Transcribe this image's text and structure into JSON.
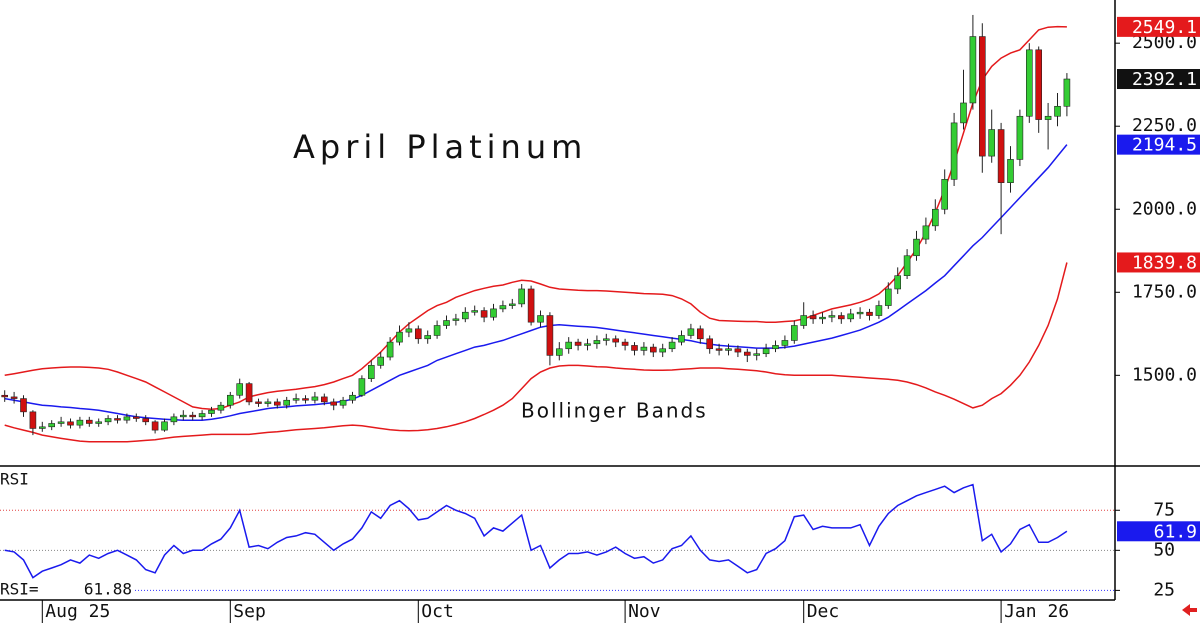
{
  "chart_data": [
    {
      "type": "candlestick",
      "title": "April Platinum",
      "annotation": "Bollinger Bands",
      "categories": [
        null,
        null,
        null,
        null,
        "Aug 25",
        null,
        null,
        null,
        null,
        null,
        null,
        null,
        null,
        null,
        null,
        null,
        null,
        null,
        null,
        null,
        null,
        null,
        null,
        null,
        "Sep",
        null,
        null,
        null,
        null,
        null,
        null,
        null,
        null,
        null,
        null,
        null,
        null,
        null,
        null,
        null,
        null,
        null,
        null,
        null,
        "Oct",
        null,
        null,
        null,
        null,
        null,
        null,
        null,
        null,
        null,
        null,
        null,
        null,
        null,
        null,
        null,
        null,
        null,
        null,
        null,
        null,
        null,
        "Nov",
        null,
        null,
        null,
        null,
        null,
        null,
        null,
        null,
        null,
        null,
        null,
        null,
        null,
        null,
        null,
        null,
        null,
        null,
        "Dec",
        null,
        null,
        null,
        null,
        null,
        null,
        null,
        null,
        null,
        null,
        null,
        null,
        null,
        null,
        null,
        null,
        null,
        null,
        null,
        null,
        "Jan 26",
        null,
        null,
        null,
        null,
        null,
        null,
        null
      ],
      "open": [
        1440,
        1435,
        1430,
        1390,
        1340,
        1345,
        1355,
        1360,
        1350,
        1365,
        1355,
        1360,
        1370,
        1365,
        1375,
        1370,
        1360,
        1335,
        1360,
        1375,
        1380,
        1375,
        1385,
        1395,
        1410,
        1440,
        1475,
        1420,
        1415,
        1420,
        1410,
        1425,
        1430,
        1425,
        1435,
        1420,
        1410,
        1425,
        1440,
        1490,
        1530,
        1555,
        1600,
        1630,
        1640,
        1610,
        1620,
        1650,
        1665,
        1670,
        1690,
        1695,
        1675,
        1700,
        1710,
        1715,
        1760,
        1660,
        1680,
        1560,
        1580,
        1600,
        1590,
        1595,
        1605,
        1610,
        1600,
        1590,
        1575,
        1585,
        1570,
        1580,
        1600,
        1620,
        1640,
        1610,
        1580,
        1575,
        1580,
        1570,
        1560,
        1565,
        1580,
        1590,
        1605,
        1650,
        1680,
        1670,
        1675,
        1680,
        1670,
        1685,
        1690,
        1680,
        1710,
        1760,
        1800,
        1860,
        1910,
        1950,
        2000,
        2090,
        2260,
        2320,
        2520,
        2160,
        2240,
        2080,
        2150,
        2280,
        2480,
        2270,
        2280,
        2310
      ],
      "high": [
        1455,
        1450,
        1440,
        1395,
        1360,
        1365,
        1375,
        1370,
        1375,
        1375,
        1370,
        1380,
        1380,
        1385,
        1385,
        1380,
        1365,
        1370,
        1385,
        1395,
        1390,
        1395,
        1405,
        1420,
        1450,
        1490,
        1480,
        1430,
        1430,
        1430,
        1435,
        1445,
        1440,
        1450,
        1445,
        1430,
        1435,
        1450,
        1500,
        1545,
        1570,
        1615,
        1650,
        1660,
        1650,
        1635,
        1665,
        1680,
        1685,
        1705,
        1710,
        1705,
        1715,
        1725,
        1730,
        1775,
        1770,
        1695,
        1690,
        1600,
        1615,
        1610,
        1610,
        1620,
        1625,
        1620,
        1610,
        1600,
        1600,
        1595,
        1595,
        1615,
        1635,
        1655,
        1650,
        1620,
        1595,
        1595,
        1590,
        1580,
        1580,
        1595,
        1605,
        1620,
        1665,
        1720,
        1695,
        1690,
        1695,
        1690,
        1700,
        1705,
        1700,
        1725,
        1780,
        1825,
        1880,
        1935,
        1975,
        2030,
        2120,
        2290,
        2420,
        2585,
        2560,
        2300,
        2260,
        2190,
        2300,
        2500,
        2490,
        2320,
        2350,
        2410
      ],
      "low": [
        1420,
        1415,
        1375,
        1320,
        1330,
        1335,
        1345,
        1340,
        1340,
        1345,
        1345,
        1350,
        1355,
        1355,
        1360,
        1350,
        1325,
        1330,
        1350,
        1365,
        1365,
        1365,
        1375,
        1385,
        1400,
        1430,
        1410,
        1405,
        1405,
        1400,
        1400,
        1415,
        1415,
        1415,
        1410,
        1395,
        1400,
        1415,
        1435,
        1480,
        1520,
        1545,
        1590,
        1615,
        1595,
        1595,
        1610,
        1640,
        1650,
        1660,
        1680,
        1660,
        1665,
        1690,
        1700,
        1705,
        1650,
        1645,
        1530,
        1545,
        1565,
        1575,
        1575,
        1580,
        1590,
        1585,
        1575,
        1560,
        1560,
        1555,
        1555,
        1570,
        1590,
        1610,
        1595,
        1565,
        1560,
        1560,
        1555,
        1540,
        1545,
        1555,
        1570,
        1580,
        1595,
        1640,
        1655,
        1655,
        1660,
        1655,
        1660,
        1670,
        1665,
        1670,
        1700,
        1745,
        1790,
        1845,
        1895,
        1935,
        1985,
        2070,
        2240,
        2300,
        2110,
        2140,
        1925,
        2050,
        2130,
        2260,
        2230,
        2180,
        2250,
        2280
      ],
      "close": [
        1435,
        1430,
        1390,
        1340,
        1345,
        1355,
        1360,
        1350,
        1365,
        1355,
        1360,
        1370,
        1365,
        1375,
        1370,
        1360,
        1335,
        1360,
        1375,
        1380,
        1375,
        1385,
        1395,
        1410,
        1440,
        1475,
        1420,
        1415,
        1420,
        1410,
        1425,
        1430,
        1425,
        1435,
        1420,
        1410,
        1425,
        1440,
        1490,
        1530,
        1555,
        1600,
        1630,
        1640,
        1610,
        1620,
        1650,
        1665,
        1670,
        1690,
        1695,
        1675,
        1700,
        1710,
        1715,
        1760,
        1660,
        1680,
        1560,
        1580,
        1600,
        1590,
        1595,
        1605,
        1610,
        1600,
        1590,
        1575,
        1585,
        1570,
        1580,
        1600,
        1620,
        1640,
        1610,
        1580,
        1575,
        1580,
        1570,
        1560,
        1565,
        1580,
        1590,
        1605,
        1650,
        1680,
        1670,
        1675,
        1680,
        1670,
        1685,
        1690,
        1680,
        1710,
        1760,
        1800,
        1860,
        1910,
        1950,
        2000,
        2090,
        2260,
        2320,
        2520,
        2160,
        2240,
        2080,
        2150,
        2280,
        2480,
        2270,
        2280,
        2310,
        2392.1
      ],
      "up_color": "#33cc33",
      "down_color": "#d01010",
      "close_label_color": "#111111",
      "series": [
        {
          "color": "#e41a1c",
          "values": [
            1500,
            1505,
            1510,
            1515,
            1520,
            1522,
            1524,
            1525,
            1525,
            1524,
            1522,
            1518,
            1510,
            1500,
            1490,
            1480,
            1465,
            1450,
            1435,
            1420,
            1405,
            1400,
            1398,
            1400,
            1410,
            1420,
            1435,
            1442,
            1448,
            1452,
            1455,
            1458,
            1462,
            1466,
            1472,
            1480,
            1490,
            1500,
            1520,
            1545,
            1570,
            1600,
            1630,
            1655,
            1675,
            1695,
            1710,
            1720,
            1735,
            1745,
            1755,
            1762,
            1768,
            1772,
            1780,
            1786,
            1784,
            1775,
            1765,
            1760,
            1758,
            1756,
            1755,
            1755,
            1754,
            1752,
            1750,
            1748,
            1746,
            1745,
            1744,
            1740,
            1730,
            1715,
            1690,
            1672,
            1665,
            1664,
            1663,
            1662,
            1662,
            1660,
            1660,
            1662,
            1664,
            1670,
            1680,
            1690,
            1700,
            1706,
            1712,
            1720,
            1730,
            1745,
            1770,
            1800,
            1840,
            1880,
            1930,
            1990,
            2060,
            2140,
            2230,
            2320,
            2390,
            2430,
            2455,
            2470,
            2480,
            2510,
            2540,
            2548,
            2550,
            2549.1
          ]
        },
        {
          "color": "#1a1aee",
          "values": [
            1430,
            1425,
            1420,
            1415,
            1410,
            1408,
            1405,
            1403,
            1400,
            1398,
            1395,
            1390,
            1385,
            1380,
            1375,
            1372,
            1370,
            1368,
            1366,
            1365,
            1365,
            1365,
            1368,
            1372,
            1378,
            1385,
            1390,
            1395,
            1400,
            1403,
            1405,
            1408,
            1410,
            1412,
            1415,
            1418,
            1422,
            1428,
            1440,
            1455,
            1470,
            1485,
            1500,
            1510,
            1520,
            1530,
            1545,
            1555,
            1565,
            1575,
            1585,
            1590,
            1598,
            1605,
            1615,
            1625,
            1635,
            1645,
            1650,
            1652,
            1650,
            1648,
            1646,
            1644,
            1640,
            1636,
            1632,
            1628,
            1624,
            1620,
            1616,
            1612,
            1608,
            1604,
            1598,
            1594,
            1590,
            1588,
            1586,
            1584,
            1582,
            1582,
            1582,
            1584,
            1588,
            1594,
            1600,
            1606,
            1612,
            1620,
            1628,
            1636,
            1648,
            1660,
            1675,
            1695,
            1715,
            1735,
            1755,
            1778,
            1800,
            1830,
            1860,
            1890,
            1915,
            1945,
            1975,
            2005,
            2035,
            2065,
            2095,
            2125,
            2160,
            2194.5
          ]
        },
        {
          "color": "#e41a1c",
          "values": [
            1350,
            1342,
            1335,
            1328,
            1320,
            1315,
            1310,
            1306,
            1302,
            1300,
            1300,
            1300,
            1300,
            1300,
            1302,
            1304,
            1306,
            1310,
            1314,
            1316,
            1318,
            1320,
            1322,
            1322,
            1322,
            1322,
            1322,
            1325,
            1328,
            1330,
            1333,
            1336,
            1338,
            1340,
            1342,
            1345,
            1348,
            1350,
            1348,
            1344,
            1340,
            1336,
            1334,
            1333,
            1334,
            1336,
            1340,
            1345,
            1352,
            1360,
            1370,
            1382,
            1395,
            1410,
            1430,
            1460,
            1490,
            1510,
            1522,
            1528,
            1530,
            1530,
            1528,
            1526,
            1525,
            1522,
            1520,
            1518,
            1516,
            1515,
            1515,
            1516,
            1518,
            1520,
            1522,
            1522,
            1522,
            1520,
            1518,
            1516,
            1514,
            1510,
            1505,
            1502,
            1500,
            1500,
            1500,
            1500,
            1500,
            1498,
            1496,
            1494,
            1492,
            1490,
            1488,
            1485,
            1480,
            1472,
            1462,
            1450,
            1440,
            1428,
            1415,
            1402,
            1410,
            1430,
            1445,
            1470,
            1500,
            1540,
            1590,
            1650,
            1730,
            1839.8
          ]
        }
      ],
      "ylim": [
        1230,
        2630
      ],
      "yticks": [
        {
          "value": 1500,
          "label": "1500.0"
        },
        {
          "value": 1750,
          "label": "1750.0"
        },
        {
          "value": 2000,
          "label": "2000.0"
        },
        {
          "value": 2250,
          "label": "2250.0"
        },
        {
          "value": 2500,
          "label": "2500.0"
        }
      ]
    },
    {
      "type": "line",
      "title": "RSI",
      "readout_label": "RSI=",
      "color": "#1a1aee",
      "values": [
        50,
        49,
        44,
        33,
        37,
        39,
        41,
        44,
        42,
        47,
        45,
        48,
        50,
        47,
        44,
        38,
        36,
        47,
        53,
        48,
        50,
        50,
        54,
        57,
        64,
        75,
        52,
        53,
        51,
        55,
        58,
        59,
        61,
        60,
        55,
        50,
        54,
        57,
        64,
        74,
        70,
        78,
        81,
        76,
        69,
        70,
        74,
        78,
        75,
        73,
        70,
        59,
        64,
        62,
        67,
        72,
        50,
        53,
        39,
        44,
        48,
        48,
        49,
        47,
        49,
        52,
        48,
        45,
        46,
        42,
        44,
        51,
        53,
        59,
        50,
        44,
        43,
        44,
        40,
        36,
        38,
        48,
        51,
        56,
        71,
        72,
        63,
        65,
        64,
        64,
        64,
        66,
        53,
        65,
        73,
        78,
        81,
        84,
        86,
        88,
        90,
        86,
        89,
        91,
        56,
        60,
        49,
        54,
        63,
        66,
        55,
        55,
        58,
        61.88
      ],
      "value_label": "61.9",
      "ylim": [
        19,
        102
      ],
      "yticks": [
        25,
        50,
        75
      ],
      "ytick_line_colors": [
        "#3333ff",
        "#888888",
        "#e04040"
      ]
    }
  ]
}
